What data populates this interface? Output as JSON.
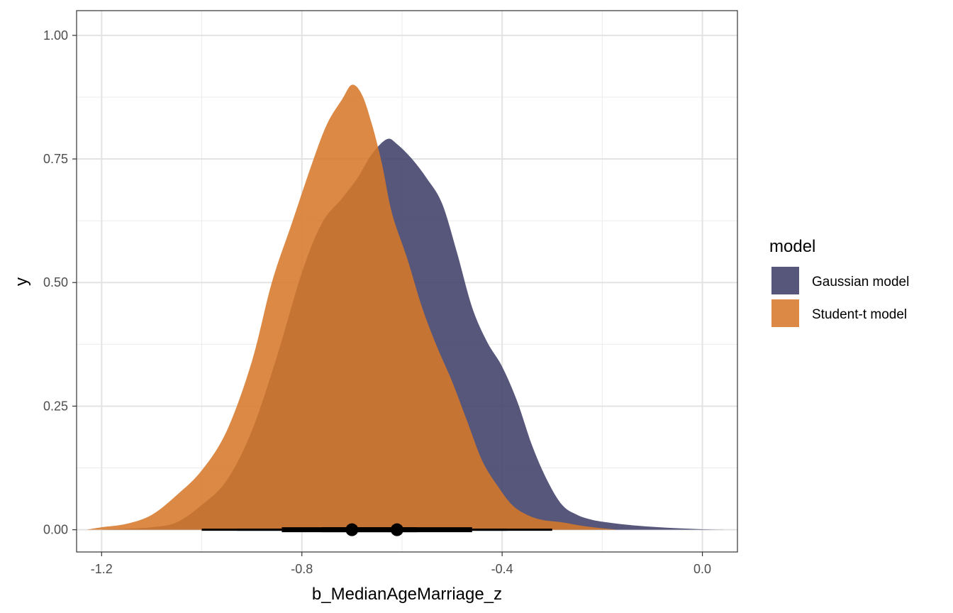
{
  "chart_data": {
    "type": "area",
    "title": "",
    "xlabel": "b_MedianAgeMarriage_z",
    "ylabel": "y",
    "xlim": [
      -1.25,
      0.07
    ],
    "ylim": [
      -0.045,
      1.05
    ],
    "x_ticks": [
      -1.2,
      -0.8,
      -0.4,
      0.0
    ],
    "x_tick_labels": [
      "-1.2",
      "-0.8",
      "-0.4",
      "0.0"
    ],
    "y_ticks": [
      0.0,
      0.25,
      0.5,
      0.75,
      1.0
    ],
    "y_tick_labels": [
      "0.00",
      "0.25",
      "0.50",
      "0.75",
      "1.00"
    ],
    "grid": true,
    "legend": {
      "title": "model",
      "position": "right"
    },
    "series": [
      {
        "name": "Gaussian model",
        "color": "#3f4068",
        "opacity": 0.88,
        "x": [
          -1.2,
          -1.15,
          -1.1,
          -1.05,
          -1.0,
          -0.95,
          -0.9,
          -0.85,
          -0.8,
          -0.76,
          -0.72,
          -0.69,
          -0.66,
          -0.63,
          -0.61,
          -0.58,
          -0.55,
          -0.52,
          -0.49,
          -0.46,
          -0.43,
          -0.4,
          -0.37,
          -0.34,
          -0.31,
          -0.28,
          -0.25,
          -0.22,
          -0.19,
          -0.15,
          -0.1,
          -0.05,
          0.0,
          0.05
        ],
        "y": [
          0.0,
          0.002,
          0.005,
          0.015,
          0.05,
          0.1,
          0.2,
          0.35,
          0.52,
          0.62,
          0.67,
          0.71,
          0.76,
          0.79,
          0.78,
          0.75,
          0.71,
          0.66,
          0.56,
          0.45,
          0.38,
          0.33,
          0.26,
          0.17,
          0.1,
          0.05,
          0.03,
          0.02,
          0.015,
          0.01,
          0.006,
          0.003,
          0.001,
          0.0
        ]
      },
      {
        "name": "Student-t model",
        "color": "#d6792a",
        "opacity": 0.88,
        "x": [
          -1.23,
          -1.2,
          -1.15,
          -1.1,
          -1.05,
          -1.0,
          -0.95,
          -0.9,
          -0.86,
          -0.82,
          -0.78,
          -0.75,
          -0.72,
          -0.7,
          -0.68,
          -0.66,
          -0.64,
          -0.62,
          -0.59,
          -0.56,
          -0.53,
          -0.5,
          -0.47,
          -0.44,
          -0.41,
          -0.38,
          -0.35,
          -0.32,
          -0.28,
          -0.24,
          -0.2,
          -0.17
        ],
        "y": [
          0.0,
          0.005,
          0.012,
          0.03,
          0.07,
          0.12,
          0.2,
          0.34,
          0.5,
          0.62,
          0.74,
          0.82,
          0.87,
          0.9,
          0.88,
          0.82,
          0.74,
          0.64,
          0.55,
          0.45,
          0.37,
          0.3,
          0.22,
          0.14,
          0.09,
          0.05,
          0.03,
          0.02,
          0.015,
          0.008,
          0.003,
          0.0
        ]
      }
    ],
    "intervals": [
      {
        "series": "Student-t model",
        "point": -0.7,
        "inner": [
          -0.84,
          -0.57
        ],
        "outer": [
          -1.0,
          -0.39
        ]
      },
      {
        "series": "Gaussian model",
        "point": -0.61,
        "inner": [
          -0.76,
          -0.46
        ],
        "outer": [
          -0.93,
          -0.3
        ]
      }
    ]
  }
}
